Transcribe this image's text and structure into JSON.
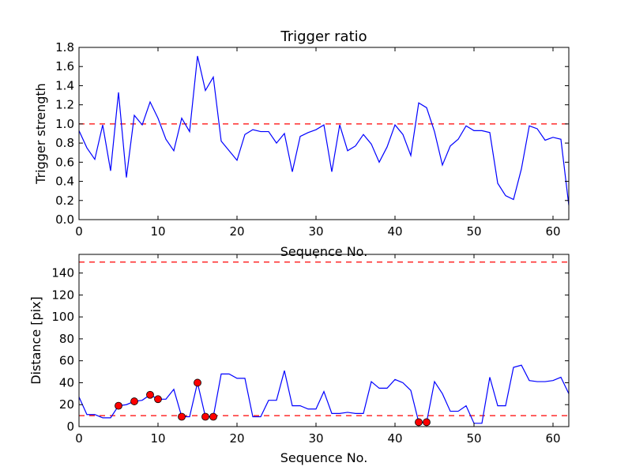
{
  "colors": {
    "line": "#0000ff",
    "threshold": "#ff0000",
    "marker": "#ff0000",
    "frame": "#000000"
  },
  "chart_data": [
    {
      "type": "line",
      "title": "Trigger ratio",
      "xlabel": "Sequence No.",
      "ylabel": "Trigger strength",
      "xlim": [
        0,
        62
      ],
      "ylim": [
        0,
        1.8
      ],
      "xticks": [
        0,
        10,
        20,
        30,
        40,
        50,
        60
      ],
      "yticks": [
        "0.0",
        "0.2",
        "0.4",
        "0.6",
        "0.8",
        "1.0",
        "1.2",
        "1.4",
        "1.6",
        "1.8"
      ],
      "grid": false,
      "series": [
        {
          "name": "trigger strength",
          "x": [
            0,
            1,
            2,
            3,
            4,
            5,
            6,
            7,
            8,
            9,
            10,
            11,
            12,
            13,
            14,
            15,
            16,
            17,
            18,
            19,
            20,
            21,
            22,
            23,
            24,
            25,
            26,
            27,
            28,
            29,
            30,
            31,
            32,
            33,
            34,
            35,
            36,
            37,
            38,
            39,
            40,
            41,
            42,
            43,
            44,
            45,
            46,
            47,
            48,
            49,
            50,
            51,
            52,
            53,
            54,
            55,
            56,
            57,
            58,
            59,
            60,
            61,
            62
          ],
          "values": [
            0.93,
            0.75,
            0.63,
            0.99,
            0.51,
            1.33,
            0.44,
            1.09,
            0.99,
            1.23,
            1.06,
            0.84,
            0.72,
            1.06,
            0.92,
            1.71,
            1.35,
            1.49,
            0.82,
            0.72,
            0.62,
            0.89,
            0.94,
            0.92,
            0.92,
            0.8,
            0.9,
            0.5,
            0.87,
            0.91,
            0.94,
            0.99,
            0.5,
            0.99,
            0.72,
            0.77,
            0.89,
            0.79,
            0.6,
            0.76,
            0.99,
            0.89,
            0.67,
            1.22,
            1.17,
            0.92,
            0.57,
            0.77,
            0.84,
            0.98,
            0.93,
            0.93,
            0.91,
            0.38,
            0.25,
            0.21,
            0.53,
            0.98,
            0.95,
            0.83,
            0.86,
            0.84,
            0.15
          ]
        }
      ],
      "hlines": [
        1.0
      ]
    },
    {
      "type": "line",
      "title": "",
      "xlabel": "Sequence No.",
      "ylabel": "Distance [pix]",
      "xlim": [
        0,
        62
      ],
      "ylim": [
        0,
        157
      ],
      "xticks": [
        0,
        10,
        20,
        30,
        40,
        50,
        60
      ],
      "yticks": [
        0,
        20,
        40,
        60,
        80,
        100,
        120,
        140
      ],
      "grid": false,
      "series": [
        {
          "name": "distance",
          "x": [
            0,
            1,
            2,
            3,
            4,
            5,
            6,
            7,
            8,
            9,
            10,
            11,
            12,
            13,
            14,
            15,
            16,
            17,
            18,
            19,
            20,
            21,
            22,
            23,
            24,
            25,
            26,
            27,
            28,
            29,
            30,
            31,
            32,
            33,
            34,
            35,
            36,
            37,
            38,
            39,
            40,
            41,
            42,
            43,
            44,
            45,
            46,
            47,
            48,
            49,
            50,
            51,
            52,
            53,
            54,
            55,
            56,
            57,
            58,
            59,
            60,
            61,
            62
          ],
          "values": [
            27,
            11,
            11,
            8,
            8,
            19,
            20,
            23,
            24,
            29,
            25,
            25,
            34,
            9,
            9,
            40,
            9,
            9,
            48,
            48,
            44,
            44,
            9,
            9,
            24,
            24,
            51,
            19,
            19,
            16,
            16,
            32,
            12,
            12,
            13,
            12,
            12,
            41,
            35,
            35,
            43,
            40,
            33,
            4,
            4,
            41,
            30,
            14,
            14,
            19,
            3,
            3,
            45,
            19,
            19,
            54,
            56,
            42,
            41,
            41,
            42,
            45,
            30
          ]
        }
      ],
      "hlines": [
        10,
        150
      ],
      "markers": {
        "x": [
          5,
          7,
          9,
          10,
          13,
          15,
          16,
          17,
          43,
          44
        ],
        "y": [
          19,
          23,
          29,
          25,
          9,
          40,
          9,
          9,
          4,
          4
        ]
      }
    }
  ]
}
